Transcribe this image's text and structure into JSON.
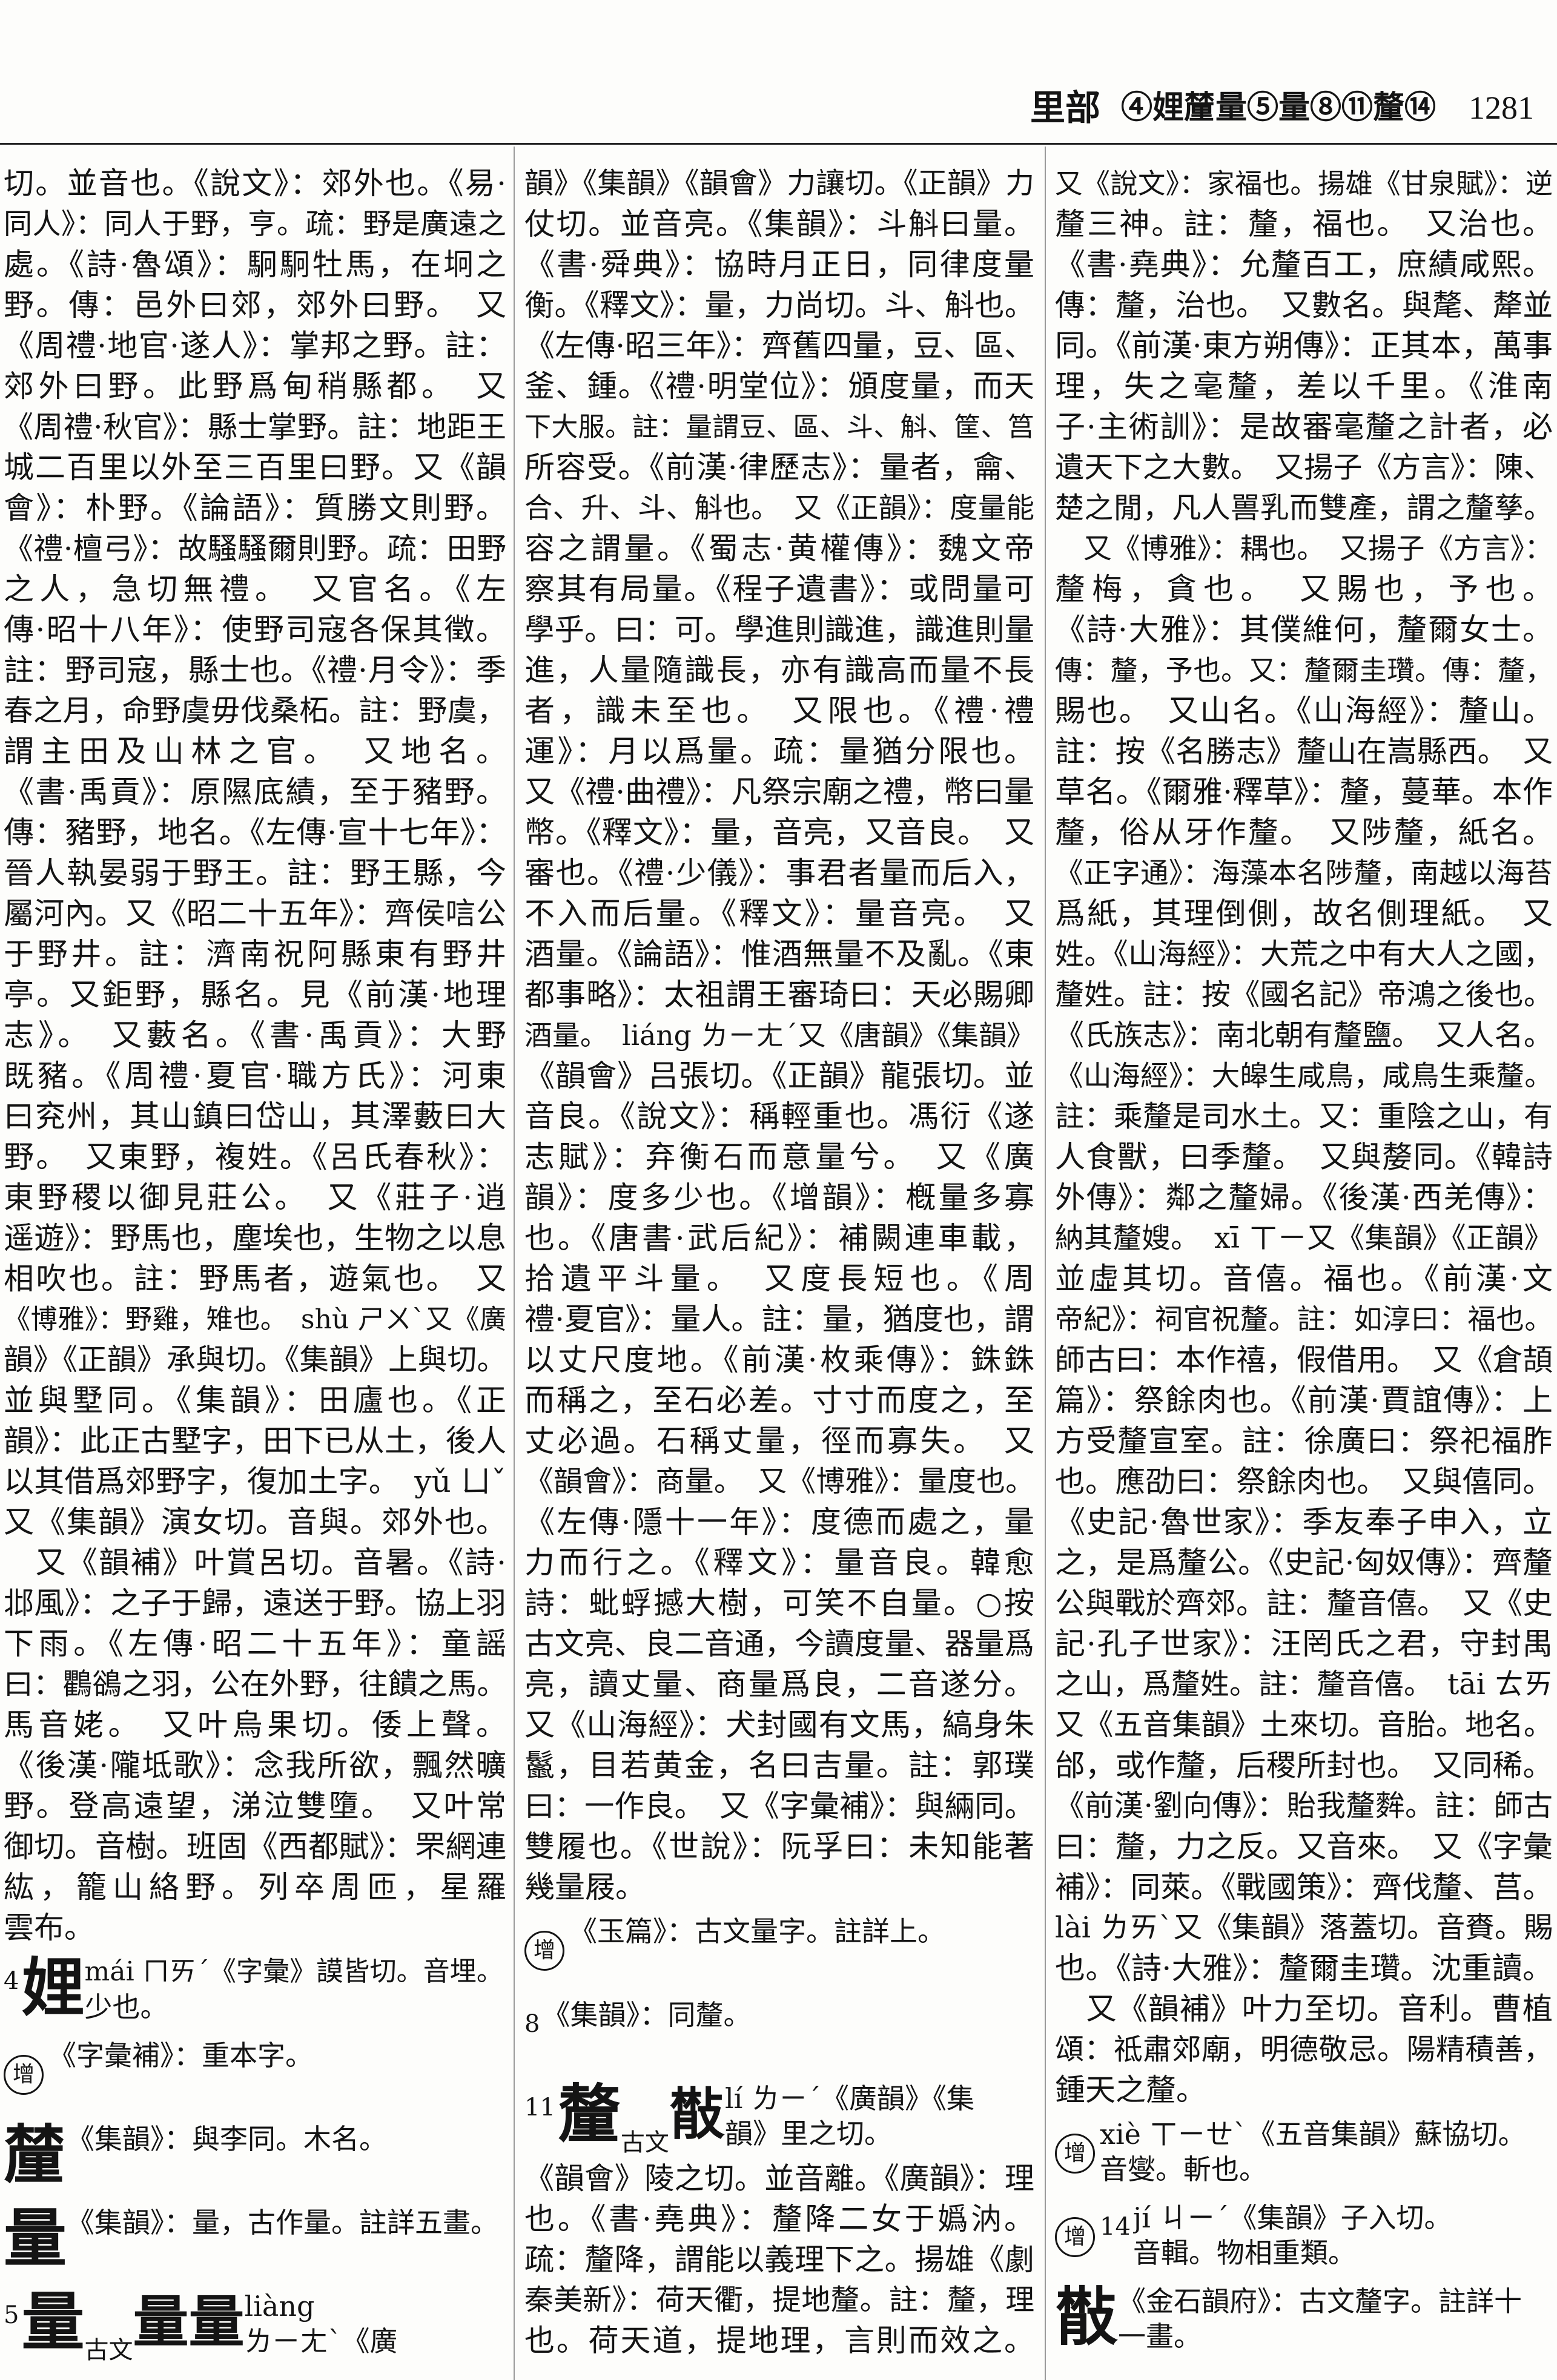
{
  "header": {
    "section": "里部",
    "index": "④娌𨤲𨤳量⑤量𨤷⑧𨤹⑪釐𨤾⑭𨥀𢿨",
    "page": "1281"
  },
  "columns": [
    {
      "lines": [
        "切。並音也。《說文》：郊外也。《易·",
        "同人》：同人于野，亨。疏：野是廣遠之",
        "處。《詩·魯頌》：駉駉牡馬，在坰之",
        "野。傳：邑外曰郊，郊外曰野。　又",
        "《周禮·地官·遂人》：掌邦之野。註：",
        "郊外曰野。此野爲甸稍縣都。　又",
        "《周禮·秋官》：縣士掌野。註：地距王",
        "城二百里以外至三百里曰野。又《韻",
        "會》：朴野。《論語》：質勝文則野。",
        "《禮·檀弓》：故騷騷爾則野。疏：田野",
        "之人，急切無禮。　又官名。《左",
        "傳·昭十八年》：使野司寇各保其徵。",
        "註：野司寇，縣士也。《禮·月令》：季",
        "春之月，命野虞毋伐桑柘。註：野虞，",
        "謂主田及山林之官。　又地名。",
        "《書·禹貢》：原隰底績，至于豬野。",
        "傳：豬野，地名。《左傳·宣十七年》：",
        "晉人執晏弱于野王。註：野王縣，今",
        "屬河內。又《昭二十五年》：齊侯唁公",
        "于野井。註：濟南祝阿縣東有野井",
        "亭。又鉅野，縣名。見《前漢·地理",
        "志》。　又藪名。《書·禹貢》：大野",
        "既豬。《周禮·夏官·職方氏》：河東",
        "曰兖州，其山鎮曰岱山，其澤藪曰大",
        "野。　又東野，複姓。《呂氏春秋》：",
        "東野稷以御見莊公。　又《莊子·逍",
        "遥遊》：野馬也，塵埃也，生物之以息",
        "相吹也。註：野馬者，遊氣也。　又",
        "《博雅》：野雞，雉也。　shù ㄕㄨˋ又《廣",
        "韻》《正韻》承與切。《集韻》上與切。",
        "並與墅同。《集韻》：田廬也。《正",
        "韻》：此正古墅字，田下已从土，後人",
        "以其借爲郊野字，復加土字。　yǔ ㄩˇ",
        "又《集韻》演女切。音與。郊外也。",
        "　又《韻補》叶賞呂切。音暑。《詩·",
        "邶風》：之子于歸，遠送于野。協上羽",
        "下雨。《左傳·昭二十五年》：童謡",
        "曰：鸜鵒之羽，公在外野，往饋之馬。",
        "馬音姥。　又叶烏果切。倭上聲。",
        "《後漢·隴坻歌》：念我所欲，飄然曠",
        "野。登高遠望，涕泣雙墮。　又叶常",
        "御切。音樹。班固《西都賦》：罘網連",
        "紘，籠山絡野。列卒周匝，星羅",
        "雲布。"
      ],
      "entries": [
        {
          "stroke": "4",
          "head": "娌",
          "text": [
            "mái ㄇㄞˊ《字彙》謨皆切。音埋。",
            "少也。"
          ]
        },
        {
          "mark": "增",
          "head": "𨤲",
          "text": [
            "《字彙補》：重本字。"
          ]
        },
        {
          "head": "𨤳",
          "text": [
            "《集韻》：與李同。木名。"
          ]
        },
        {
          "head": "量",
          "text": [
            "《集韻》：量，古作量。註詳五畫。"
          ]
        },
        {
          "stroke": "5",
          "head": "量",
          "variants_before": [
            "𨤸"
          ],
          "guwen": "古文",
          "variants_after": [
            "量量𨤻"
          ],
          "text": [
            "liàng",
            "ㄌㄧㄤˋ《廣"
          ]
        }
      ]
    },
    {
      "lines": [
        "韻》《集韻》《韻會》力讓切。《正韻》力",
        "仗切。並音亮。《集韻》：斗斛曰量。",
        "《書·舜典》：協時月正日，同律度量",
        "衡。《釋文》：量，力尚切。斗、斛也。",
        "《左傳·昭三年》：齊舊四量，豆、區、",
        "釜、鍾。《禮·明堂位》：頒度量，而天",
        "下大服。註：量謂豆、區、斗、斛、筐、筥",
        "所容受。《前漢·律歷志》：量者，龠、",
        "合、升、斗、斛也。　又《正韻》：度量能",
        "容之謂量。《蜀志·黄權傳》：魏文帝",
        "察其有局量。《程子遺書》：或問量可",
        "學乎。曰：可。學進則識進，識進則量",
        "進，人量隨識長，亦有識高而量不長",
        "者，識未至也。　又限也。《禮·禮",
        "運》：月以爲量。疏：量猶分限也。",
        "又《禮·曲禮》：凡祭宗廟之禮，幣曰量",
        "幣。《釋文》：量，音亮，又音良。　又",
        "審也。《禮·少儀》：事君者量而后入，",
        "不入而后量。《釋文》：量音亮。　又",
        "酒量。《論語》：惟酒無量不及亂。《東",
        "都事略》：太祖謂王審琦曰：天必賜卿",
        "酒量。　liáng ㄌㄧㄤˊ又《唐韻》《集韻》",
        "《韻會》吕張切。《正韻》龍張切。並",
        "音良。《說文》：稱輕重也。馮衍《遂",
        "志賦》：弃衡石而意量兮。　又《廣",
        "韻》：度多少也。《增韻》：槪量多寡",
        "也。《唐書·武后紀》：補闕連車載，",
        "拾遺平斗量。　又度長短也。《周",
        "禮·夏官》：量人。註：量，猶度也，謂",
        "以丈尺度地。《前漢·枚乘傳》：銖銖",
        "而稱之，至石必差。寸寸而度之，至",
        "丈必過。石稱丈量，徑而寡失。　又",
        "《韻會》：商量。　又《博雅》：量度也。",
        "《左傳·隱十一年》：度德而處之，量",
        "力而行之。《釋文》：量音良。韓愈",
        "詩：蚍蜉撼大樹，可笑不自量。○按",
        "古文亮、良二音通，今讀度量、器量爲",
        "亮，讀丈量、商量爲良，二音遂分。",
        "又《山海經》：犬封國有文馬，縞身朱",
        "鬣，目若黄金，名曰吉量。註：郭璞",
        "曰：一作良。　又《字彙補》：與緉同。",
        "雙履也。《世說》：阮孚曰：未知能著",
        "幾量屐。"
      ],
      "entries": [
        {
          "mark": "增",
          "head": "𨤷",
          "text": [
            "《玉篇》：古文量字。註詳上。"
          ]
        },
        {
          "stroke": "8",
          "head": "𨤹",
          "text": [
            "《集韻》：同釐。"
          ]
        },
        {
          "stroke": "11",
          "head": "釐",
          "variants_before": [
            "𨤽"
          ],
          "guwen": "古文",
          "variants_after": [
            "𢿨"
          ],
          "text": [
            "lí ㄌㄧˊ《廣韻》《集",
            "韻》里之切。"
          ]
        }
      ],
      "lines_after": [
        "《韻會》陵之切。並音離。《廣韻》：理",
        "也。《書·堯典》：釐降二女于嬀汭。",
        "疏：釐降，謂能以義理下之。揚雄《劇",
        "秦美新》：荷天衢，提地釐。註：釐，理",
        "也。荷天道，提地理，言則而效之。"
      ]
    },
    {
      "lines": [
        "又《說文》：家福也。揚雄《甘泉賦》：逆",
        "釐三神。註：釐，福也。　又治也。",
        "《書·堯典》：允釐百工，庶績咸熙。",
        "傳：釐，治也。　又數名。與氂、犛並",
        "同。《前漢·東方朔傳》：正其本，萬事",
        "理，失之毫釐，差以千里。《淮南",
        "子·主術訓》：是故審毫釐之計者，必",
        "遺天下之大數。　又揚子《方言》：陳、",
        "楚之閒，凡人嘼乳而雙產，謂之釐孳。",
        "　又《博雅》：耦也。　又揚子《方言》：",
        "釐梅，貪也。　又賜也，予也。",
        "《詩·大雅》：其僕維何，釐爾女士。",
        "傳：釐，予也。又：釐爾圭瓚。傳：釐，",
        "賜也。　又山名。《山海經》：釐山。",
        "註：按《名勝志》釐山在嵩縣西。　又",
        "草名。《爾雅·釋草》：釐，蔓華。本作",
        "釐，俗从牙作釐。　又陟釐，紙名。",
        "《正字通》：海藻本名陟釐，南越以海苔",
        "爲紙，其理倒側，故名側理紙。　又",
        "姓。《山海經》：大荒之中有大人之國，",
        "釐姓。註：按《國名記》帝鴻之後也。",
        "《氏族志》：南北朝有釐鹽。　又人名。",
        "《山海經》：大皞生咸鳥，咸鳥生乘釐。",
        "註：乘釐是司水土。又：重陰之山，有",
        "人食獸，曰季釐。　又與嫠同。《韓詩",
        "外傳》：鄰之釐婦。《後漢·西羌傳》：",
        "納其釐嫂。　xī ㄒㄧ又《集韻》《正韻》",
        "並虛其切。音僖。福也。《前漢·文",
        "帝紀》：祠官祝釐。註：如淳曰：福也。",
        "師古曰：本作禧，假借用。　又《倉頡",
        "篇》：祭餘肉也。《前漢·賈誼傳》：上",
        "方受釐宣室。註：徐廣曰：祭祀福胙",
        "也。應劭曰：祭餘肉也。　又與僖同。",
        "《史記·魯世家》：季友奉子申入，立",
        "之，是爲釐公。《史記·匈奴傳》：齊釐",
        "公與戰於齊郊。註：釐音僖。　又《史",
        "記·孔子世家》：汪罔氏之君，守封禺",
        "之山，爲釐姓。註：釐音僖。　tāi ㄊㄞ",
        "又《五音集韻》土來切。音胎。地名。",
        "邰，或作釐，后稷所封也。　又同稀。",
        "《前漢·劉向傳》：貽我釐麰。註：師古",
        "曰：釐，力之反。又音來。　又《字彙",
        "補》：同萊。《戰國策》：齊伐釐、莒。",
        "lài ㄌㄞˋ又《集韻》落蓋切。音賚。賜",
        "也。《詩·大雅》：釐爾圭瓚。沈重讀。",
        "　又《韻補》叶力至切。音利。曹植",
        "頌：祗肅郊廟，明德敬忌。陽精積善，",
        "鍾天之釐。"
      ],
      "entries": [
        {
          "mark": "增",
          "head": "𨤾",
          "text": [
            "xiè ㄒㄧㄝˋ《五音集韻》蘇協切。",
            "音燮。斬也。"
          ]
        },
        {
          "mark": "增",
          "stroke": "14",
          "head": "𨥀",
          "text": [
            "jí ㄐㄧˊ《集韻》子入切。",
            "音輯。物相重類。"
          ]
        },
        {
          "head": "𢿨",
          "text": [
            "《金石韻府》：古文釐字。註詳十",
            "一畫。"
          ]
        }
      ]
    }
  ]
}
